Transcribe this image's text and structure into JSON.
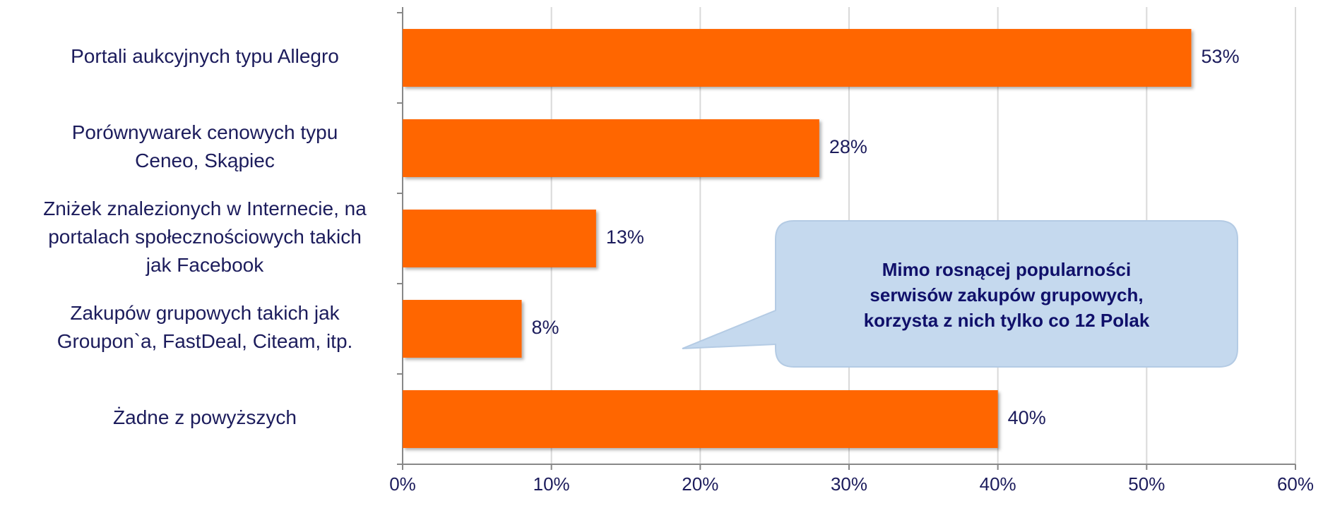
{
  "chart_data": {
    "type": "bar",
    "orientation": "horizontal",
    "categories": [
      "Portali aukcyjnych typu Allegro",
      "Porównywarek cenowych typu\nCeneo, Skąpiec",
      "Zniżek znalezionych w Internecie, na\nportalach społecznościowych takich\njak Facebook",
      "Zakupów grupowych takich jak\nGroupon`a, FastDeal, Citeam, itp.",
      "Żadne z powyższych"
    ],
    "values": [
      53,
      28,
      13,
      8,
      40
    ],
    "value_labels": [
      "53%",
      "28%",
      "13%",
      "8%",
      "40%"
    ],
    "color": "#ff6600",
    "xlim": [
      0,
      60
    ],
    "xticks": [
      {
        "value": 0,
        "label": "0%"
      },
      {
        "value": 10,
        "label": "10%"
      },
      {
        "value": 20,
        "label": "20%"
      },
      {
        "value": 30,
        "label": "30%"
      },
      {
        "value": 40,
        "label": "40%"
      },
      {
        "value": 50,
        "label": "50%"
      },
      {
        "value": 60,
        "label": "60%"
      }
    ],
    "grid": true,
    "annotation": "Mimo rosnącej popularności\nserwisów zakupów grupowych,\nkorzysta z nich tylko co 12  Polak"
  }
}
